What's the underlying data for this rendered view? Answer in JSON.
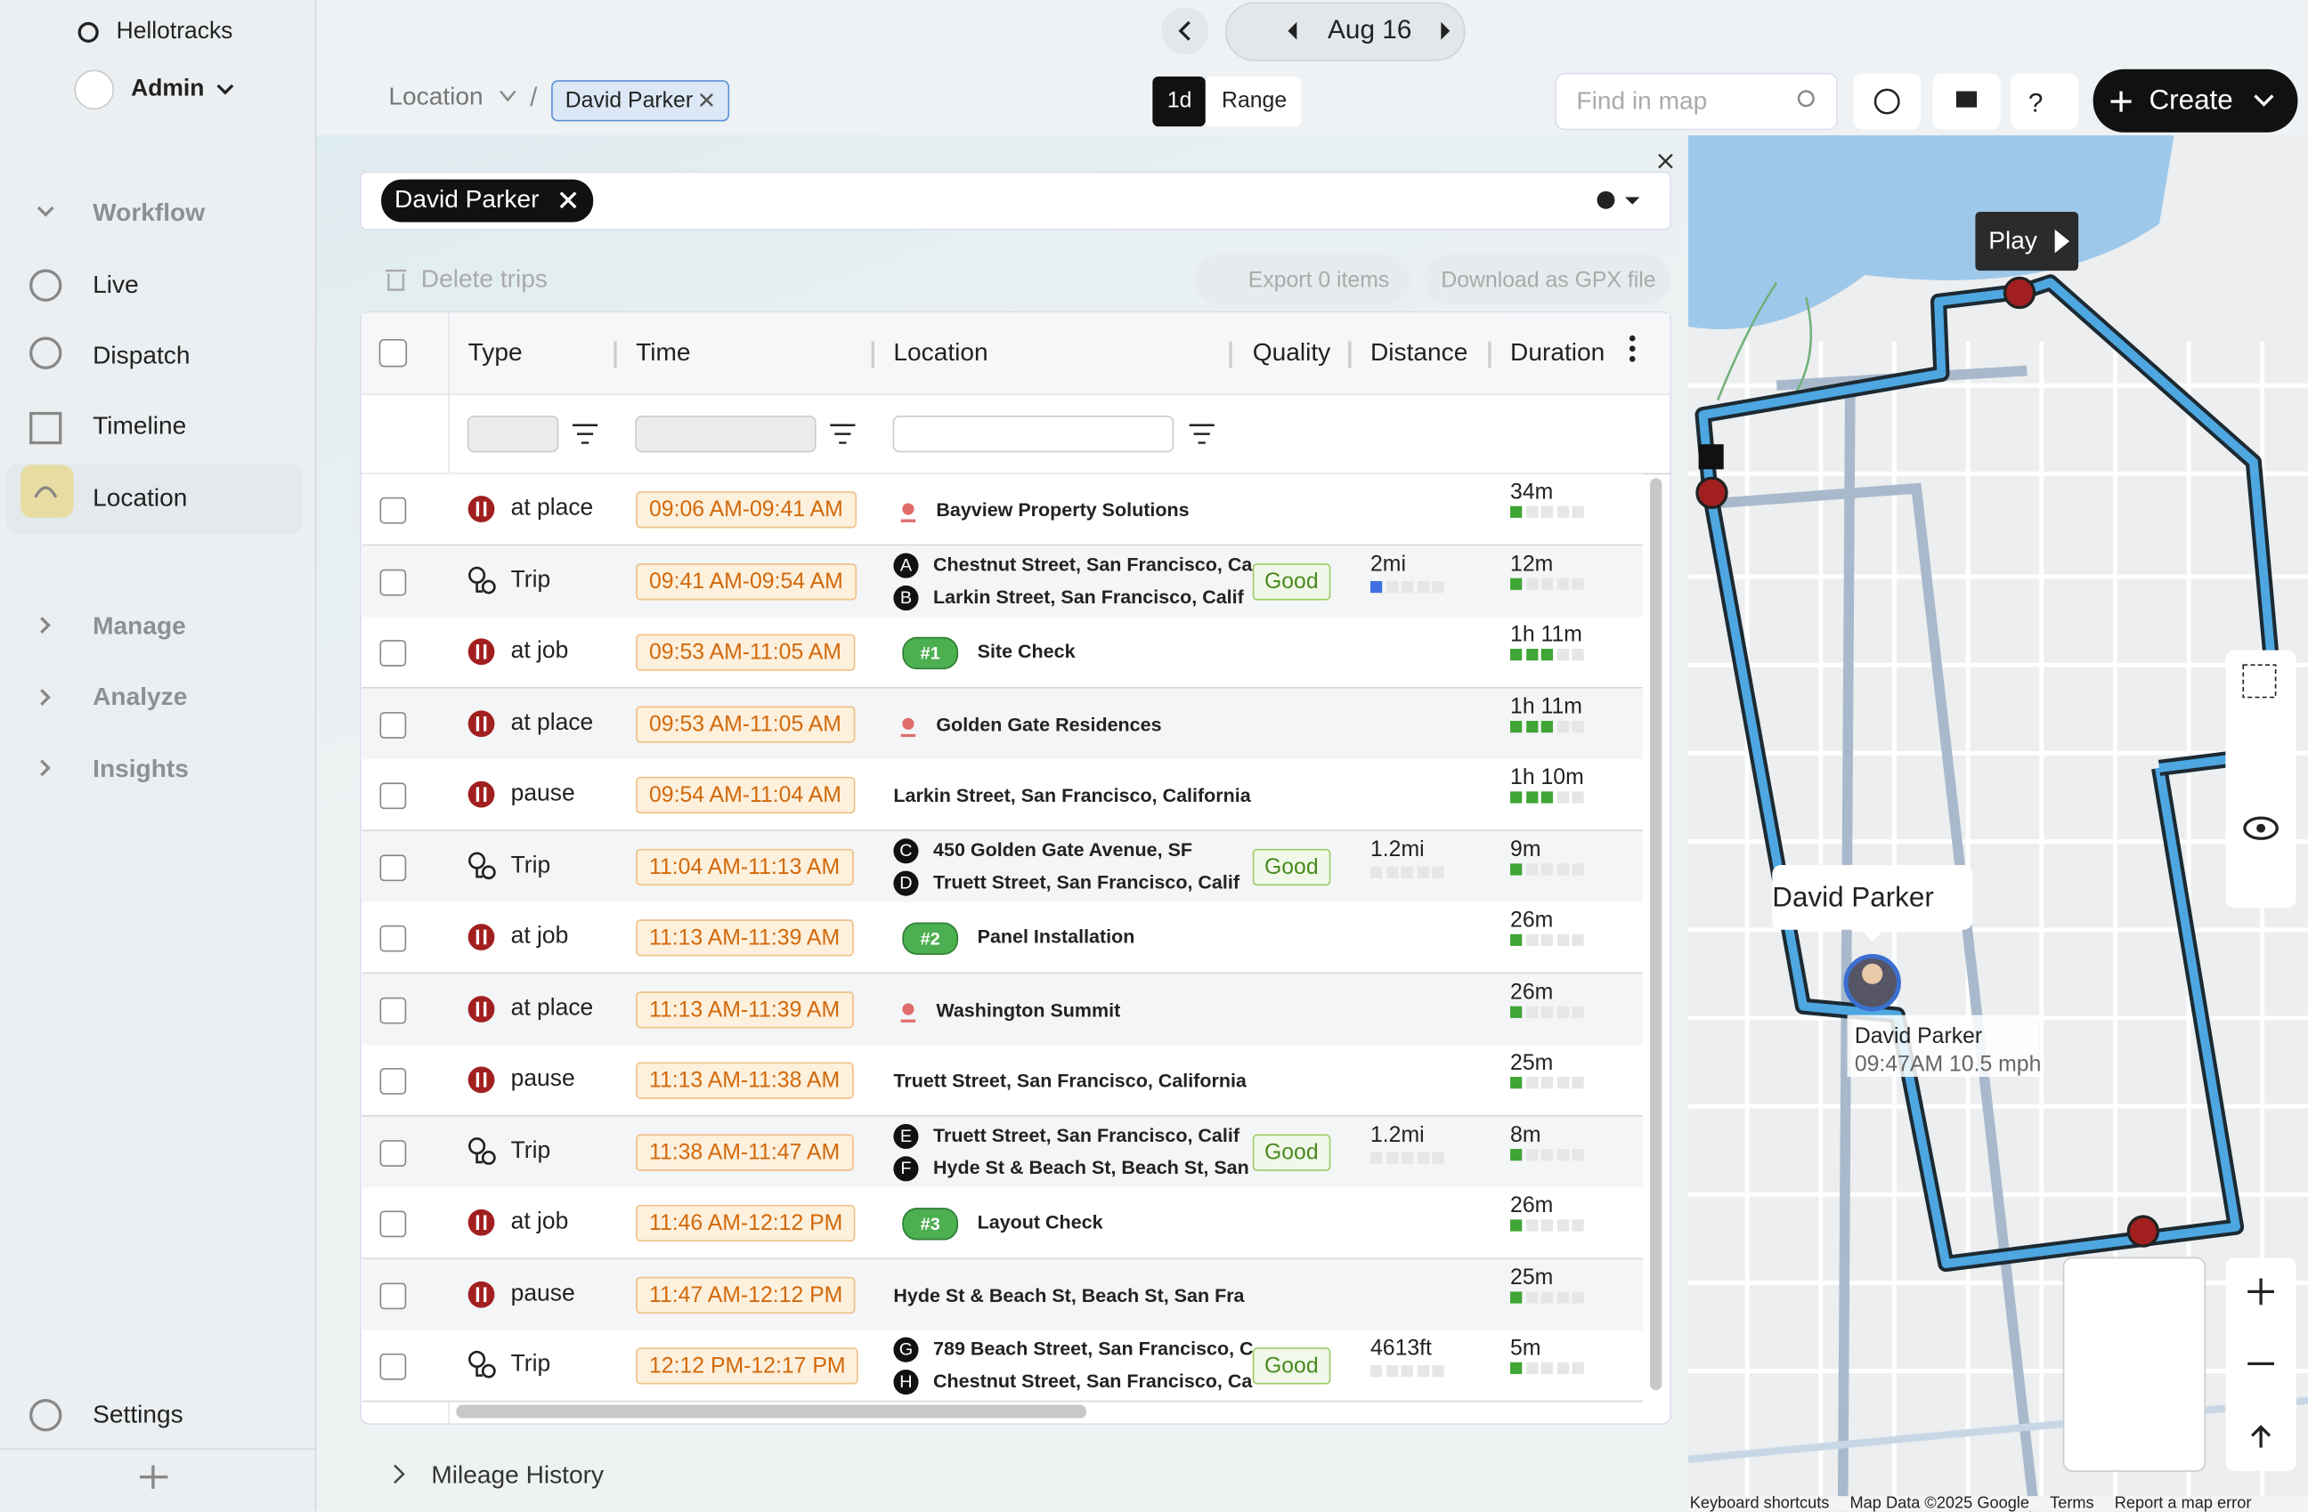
{
  "sidebar": {
    "brand": "Hellotracks",
    "user": "Admin",
    "nav": [
      "Workflow",
      "Live",
      "Dispatch",
      "Timeline",
      "Location",
      "Manage",
      "Analyze",
      "Insights"
    ],
    "settings": "Settings"
  },
  "topbar": {
    "date": "Aug 16",
    "breadcrumb": "Location",
    "chip": "David Parker",
    "modes": [
      "1d",
      "Range"
    ],
    "search_placeholder": "Find in map",
    "create": "Create"
  },
  "filter": {
    "chip": "David Parker"
  },
  "actions": {
    "delete": "Delete trips",
    "export": "Export 0 items",
    "gpx": "Download as GPX file"
  },
  "table": {
    "columns": [
      "Type",
      "Time",
      "Location",
      "Quality",
      "Distance",
      "Duration"
    ],
    "rows": [
      {
        "type": "at place",
        "time": "09:06 AM-09:41 AM",
        "place": "Bayview Property Solutions",
        "duration": "34m"
      },
      {
        "type": "Trip",
        "time": "09:41 AM-09:54 AM",
        "stops": [
          {
            "letter": "A",
            "address": "Chestnut Street, San Francisco, Ca"
          },
          {
            "letter": "B",
            "address": "Larkin Street, San Francisco, Calif"
          }
        ],
        "quality": "Good",
        "distance": "2mi",
        "duration": "12m"
      },
      {
        "type": "at job",
        "time": "09:53 AM-11:05 AM",
        "job": "#1",
        "place": "Site Check",
        "duration": "1h 11m"
      },
      {
        "type": "at place",
        "time": "09:53 AM-11:05 AM",
        "place": "Golden Gate Residences",
        "duration": "1h 11m"
      },
      {
        "type": "pause",
        "time": "09:54 AM-11:04 AM",
        "address": "Larkin Street, San Francisco, California",
        "duration": "1h 10m"
      },
      {
        "type": "Trip",
        "time": "11:04 AM-11:13 AM",
        "stops": [
          {
            "letter": "C",
            "address": "450 Golden Gate Avenue, SF"
          },
          {
            "letter": "D",
            "address": "Truett Street, San Francisco, Calif"
          }
        ],
        "quality": "Good",
        "distance": "1.2mi",
        "duration": "9m"
      },
      {
        "type": "at job",
        "time": "11:13 AM-11:39 AM",
        "job": "#2",
        "place": "Panel Installation",
        "duration": "26m"
      },
      {
        "type": "at place",
        "time": "11:13 AM-11:39 AM",
        "place": "Washington Summit",
        "duration": "26m"
      },
      {
        "type": "pause",
        "time": "11:13 AM-11:38 AM",
        "address": "Truett Street, San Francisco, California",
        "duration": "25m"
      },
      {
        "type": "Trip",
        "time": "11:38 AM-11:47 AM",
        "stops": [
          {
            "letter": "E",
            "address": "Truett Street, San Francisco, Calif"
          },
          {
            "letter": "F",
            "address": "Hyde St & Beach St, Beach St, San"
          }
        ],
        "quality": "Good",
        "distance": "1.2mi",
        "duration": "8m"
      },
      {
        "type": "at job",
        "time": "11:46 AM-12:12 PM",
        "job": "#3",
        "place": "Layout Check",
        "duration": "26m"
      },
      {
        "type": "pause",
        "time": "11:47 AM-12:12 PM",
        "address": "Hyde St & Beach St, Beach St, San Fra",
        "duration": "25m"
      },
      {
        "type": "Trip",
        "time": "12:12 PM-12:17 PM",
        "stops": [
          {
            "letter": "G",
            "address": "789 Beach Street, San Francisco, C"
          },
          {
            "letter": "H",
            "address": "Chestnut Street, San Francisco, Ca"
          }
        ],
        "quality": "Good",
        "distance": "4613ft",
        "duration": "5m"
      }
    ]
  },
  "mileage": "Mileage History",
  "map": {
    "play": "Play",
    "popup": "David Parker",
    "marker_name": "David Parker",
    "marker_info": "09:47AM 10.5 mph",
    "footer": [
      "Keyboard shortcuts",
      "Map Data ©2025 Google",
      "Terms",
      "Report a map error"
    ]
  }
}
